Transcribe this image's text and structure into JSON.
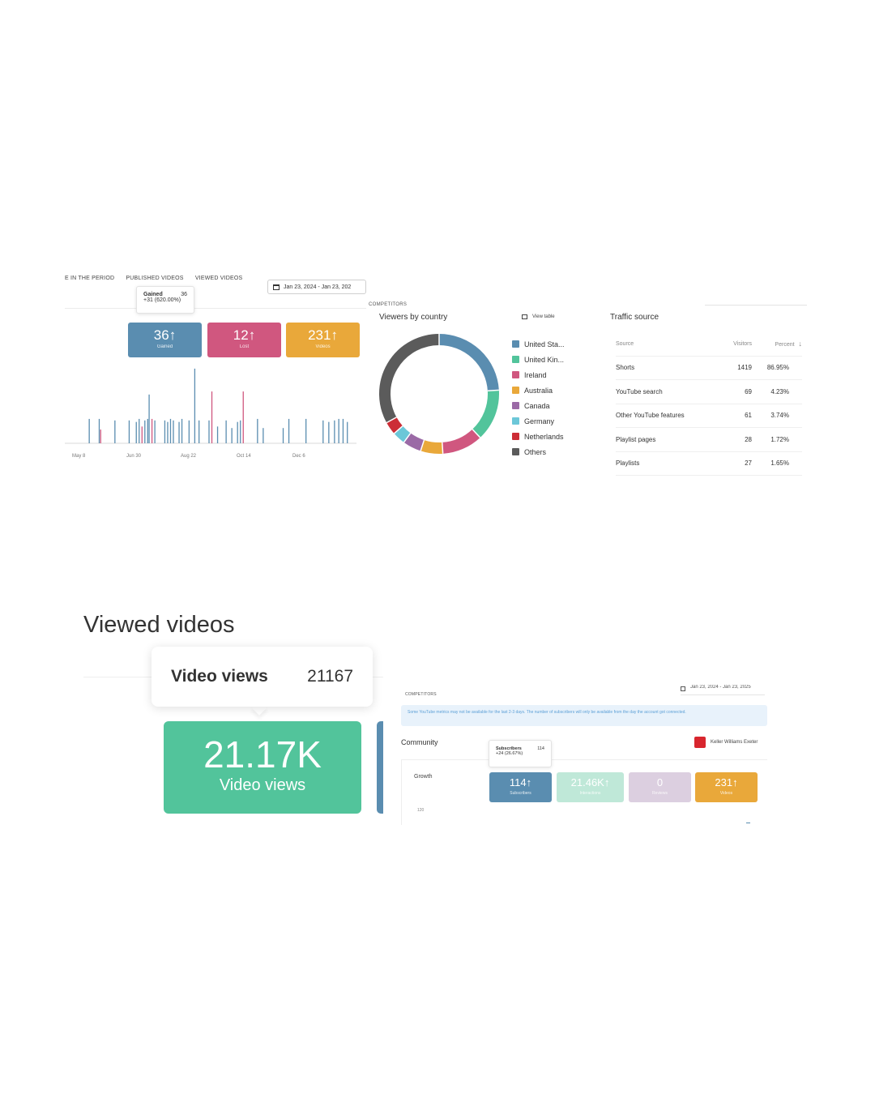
{
  "growth_panel": {
    "tabs": [
      "E IN THE PERIOD",
      "PUBLISHED VIDEOS",
      "VIEWED VIDEOS"
    ],
    "date_range": "Jan 23, 2024 - Jan 23, 202",
    "tooltip": {
      "label": "Gained",
      "value": "36",
      "change": "+31 (620.00%)"
    },
    "tiles": [
      {
        "value": "36",
        "arrow": "↑",
        "label": "Gained",
        "color": "#5a8db0"
      },
      {
        "value": "12",
        "arrow": "↑",
        "label": "Lost",
        "color": "#d0577f"
      },
      {
        "value": "231",
        "arrow": "↑",
        "label": "Videos",
        "color": "#e9a83a"
      }
    ],
    "x_ticks": [
      "May 8",
      "Jun 30",
      "Aug 22",
      "Oct 14",
      "Dec 6"
    ]
  },
  "viewers_panel": {
    "section_label": "COMPETITORS",
    "title": "Viewers by country",
    "view_table_label": "View table",
    "legend": [
      {
        "name": "United Sta...",
        "color": "#5a8db0"
      },
      {
        "name": "United Kin...",
        "color": "#52c49b"
      },
      {
        "name": "Ireland",
        "color": "#d0577f"
      },
      {
        "name": "Australia",
        "color": "#e9a83a"
      },
      {
        "name": "Canada",
        "color": "#9b6aa6"
      },
      {
        "name": "Germany",
        "color": "#6cc7d8"
      },
      {
        "name": "Netherlands",
        "color": "#cc2d36"
      },
      {
        "name": "Others",
        "color": "#5b5b5b"
      }
    ]
  },
  "traffic_panel": {
    "title": "Traffic source",
    "headers": {
      "source": "Source",
      "visitors": "Visitors",
      "percent": "Percent"
    },
    "rows": [
      {
        "source": "Shorts",
        "visitors": "1419",
        "percent": "86.95%"
      },
      {
        "source": "YouTube search",
        "visitors": "69",
        "percent": "4.23%"
      },
      {
        "source": "Other YouTube features",
        "visitors": "61",
        "percent": "3.74%"
      },
      {
        "source": "Playlist pages",
        "visitors": "28",
        "percent": "1.72%"
      },
      {
        "source": "Playlists",
        "visitors": "27",
        "percent": "1.65%"
      }
    ]
  },
  "viewed_videos": {
    "heading": "Viewed videos",
    "tooltip_label": "Video views",
    "tooltip_value": "21167",
    "tile_value": "21.17K",
    "tile_label": "Video views",
    "tile_color": "#52c49b"
  },
  "community_panel": {
    "date_range": "Jan 23, 2024 - Jan 23, 2025",
    "section_label": "COMPETITORS",
    "notice": "Some YouTube metrics may not be available for the last 2-3 days. The number of subscribers will only be available from the day the account got connected.",
    "title": "Community",
    "account": "Keller Williams Exeter",
    "growth_label": "Growth",
    "tooltip": {
      "label": "Subscribers",
      "value": "114",
      "change": "+24 (26.67%)"
    },
    "tiles": [
      {
        "value": "114",
        "arrow": "↑",
        "label": "Subscribers",
        "color": "#5a8db0"
      },
      {
        "value": "21.46K",
        "arrow": "↑",
        "label": "Interactions",
        "color": "#bfe8d8"
      },
      {
        "value": "0",
        "arrow": "",
        "label": "Reviews",
        "color": "#dccfe0"
      },
      {
        "value": "231",
        "arrow": "↑",
        "label": "Videos",
        "color": "#e9a83a"
      }
    ],
    "axis_value": "120"
  },
  "chart_data": [
    {
      "type": "bar",
      "title": "",
      "x_ticks": [
        "May 8",
        "Jun 30",
        "Aug 22",
        "Oct 14",
        "Dec 6"
      ],
      "series": [
        {
          "color": "#5a8db0",
          "values": [
            0,
            0,
            0,
            0,
            0,
            0,
            0,
            0,
            0,
            0,
            0,
            0,
            0,
            0,
            0,
            0,
            0,
            0,
            0,
            0,
            0,
            0,
            0,
            0,
            0,
            0,
            0,
            0,
            0,
            0,
            0,
            0,
            0,
            0,
            0,
            0,
            0,
            0,
            0,
            0,
            0,
            0,
            0,
            0,
            0,
            0,
            0,
            0,
            0,
            0,
            0,
            0,
            0,
            0,
            0,
            0,
            0,
            0,
            0,
            0
          ]
        },
        {
          "color": "#d0577f",
          "values": [
            0,
            0,
            0,
            0,
            0,
            0,
            0,
            0,
            0,
            0,
            0,
            0,
            0,
            0,
            0,
            0,
            0,
            0,
            0,
            0,
            0,
            0,
            0,
            0,
            0,
            0,
            0,
            0,
            0,
            0,
            0,
            0,
            0,
            0,
            0,
            0,
            0,
            0,
            0,
            0,
            0,
            0,
            0,
            0,
            0,
            0,
            0,
            0,
            0,
            0,
            0,
            0,
            0,
            0,
            0,
            0,
            0,
            0,
            0,
            0
          ]
        }
      ],
      "spikes": [
        {
          "x": 0.08,
          "v": 0.32,
          "c": "#5a8db0"
        },
        {
          "x": 0.115,
          "v": 0.32,
          "c": "#5a8db0"
        },
        {
          "x": 0.12,
          "v": 0.18,
          "c": "#d0577f"
        },
        {
          "x": 0.17,
          "v": 0.3,
          "c": "#5a8db0"
        },
        {
          "x": 0.22,
          "v": 0.3,
          "c": "#5a8db0"
        },
        {
          "x": 0.245,
          "v": 0.28,
          "c": "#5a8db0"
        },
        {
          "x": 0.255,
          "v": 0.32,
          "c": "#5a8db0"
        },
        {
          "x": 0.265,
          "v": 0.22,
          "c": "#d0577f"
        },
        {
          "x": 0.275,
          "v": 0.3,
          "c": "#5a8db0"
        },
        {
          "x": 0.285,
          "v": 0.32,
          "c": "#5a8db0"
        },
        {
          "x": 0.29,
          "v": 0.64,
          "c": "#5a8db0"
        },
        {
          "x": 0.3,
          "v": 0.32,
          "c": "#d0577f"
        },
        {
          "x": 0.31,
          "v": 0.3,
          "c": "#5a8db0"
        },
        {
          "x": 0.345,
          "v": 0.3,
          "c": "#5a8db0"
        },
        {
          "x": 0.355,
          "v": 0.28,
          "c": "#5a8db0"
        },
        {
          "x": 0.365,
          "v": 0.32,
          "c": "#5a8db0"
        },
        {
          "x": 0.375,
          "v": 0.3,
          "c": "#5a8db0"
        },
        {
          "x": 0.395,
          "v": 0.28,
          "c": "#5a8db0"
        },
        {
          "x": 0.405,
          "v": 0.32,
          "c": "#5a8db0"
        },
        {
          "x": 0.43,
          "v": 0.3,
          "c": "#5a8db0"
        },
        {
          "x": 0.45,
          "v": 0.98,
          "c": "#5a8db0"
        },
        {
          "x": 0.465,
          "v": 0.3,
          "c": "#5a8db0"
        },
        {
          "x": 0.5,
          "v": 0.3,
          "c": "#5a8db0"
        },
        {
          "x": 0.51,
          "v": 0.68,
          "c": "#d0577f"
        },
        {
          "x": 0.53,
          "v": 0.22,
          "c": "#5a8db0"
        },
        {
          "x": 0.56,
          "v": 0.3,
          "c": "#5a8db0"
        },
        {
          "x": 0.58,
          "v": 0.2,
          "c": "#5a8db0"
        },
        {
          "x": 0.6,
          "v": 0.28,
          "c": "#5a8db0"
        },
        {
          "x": 0.61,
          "v": 0.3,
          "c": "#5a8db0"
        },
        {
          "x": 0.62,
          "v": 0.68,
          "c": "#d0577f"
        },
        {
          "x": 0.67,
          "v": 0.32,
          "c": "#5a8db0"
        },
        {
          "x": 0.69,
          "v": 0.2,
          "c": "#5a8db0"
        },
        {
          "x": 0.76,
          "v": 0.2,
          "c": "#5a8db0"
        },
        {
          "x": 0.78,
          "v": 0.32,
          "c": "#5a8db0"
        },
        {
          "x": 0.84,
          "v": 0.32,
          "c": "#5a8db0"
        },
        {
          "x": 0.9,
          "v": 0.3,
          "c": "#5a8db0"
        },
        {
          "x": 0.92,
          "v": 0.28,
          "c": "#5a8db0"
        },
        {
          "x": 0.94,
          "v": 0.3,
          "c": "#5a8db0"
        },
        {
          "x": 0.955,
          "v": 0.32,
          "c": "#5a8db0"
        },
        {
          "x": 0.97,
          "v": 0.32,
          "c": "#5a8db0"
        },
        {
          "x": 0.985,
          "v": 0.28,
          "c": "#5a8db0"
        }
      ]
    },
    {
      "type": "pie",
      "title": "Viewers by country",
      "categories": [
        "United Sta...",
        "United Kin...",
        "Ireland",
        "Australia",
        "Canada",
        "Germany",
        "Netherlands",
        "Others"
      ],
      "values": [
        24,
        14,
        11,
        6,
        5,
        3.5,
        3.5,
        33
      ],
      "colors": [
        "#5a8db0",
        "#52c49b",
        "#d0577f",
        "#e9a83a",
        "#9b6aa6",
        "#6cc7d8",
        "#cc2d36",
        "#5b5b5b"
      ]
    }
  ]
}
